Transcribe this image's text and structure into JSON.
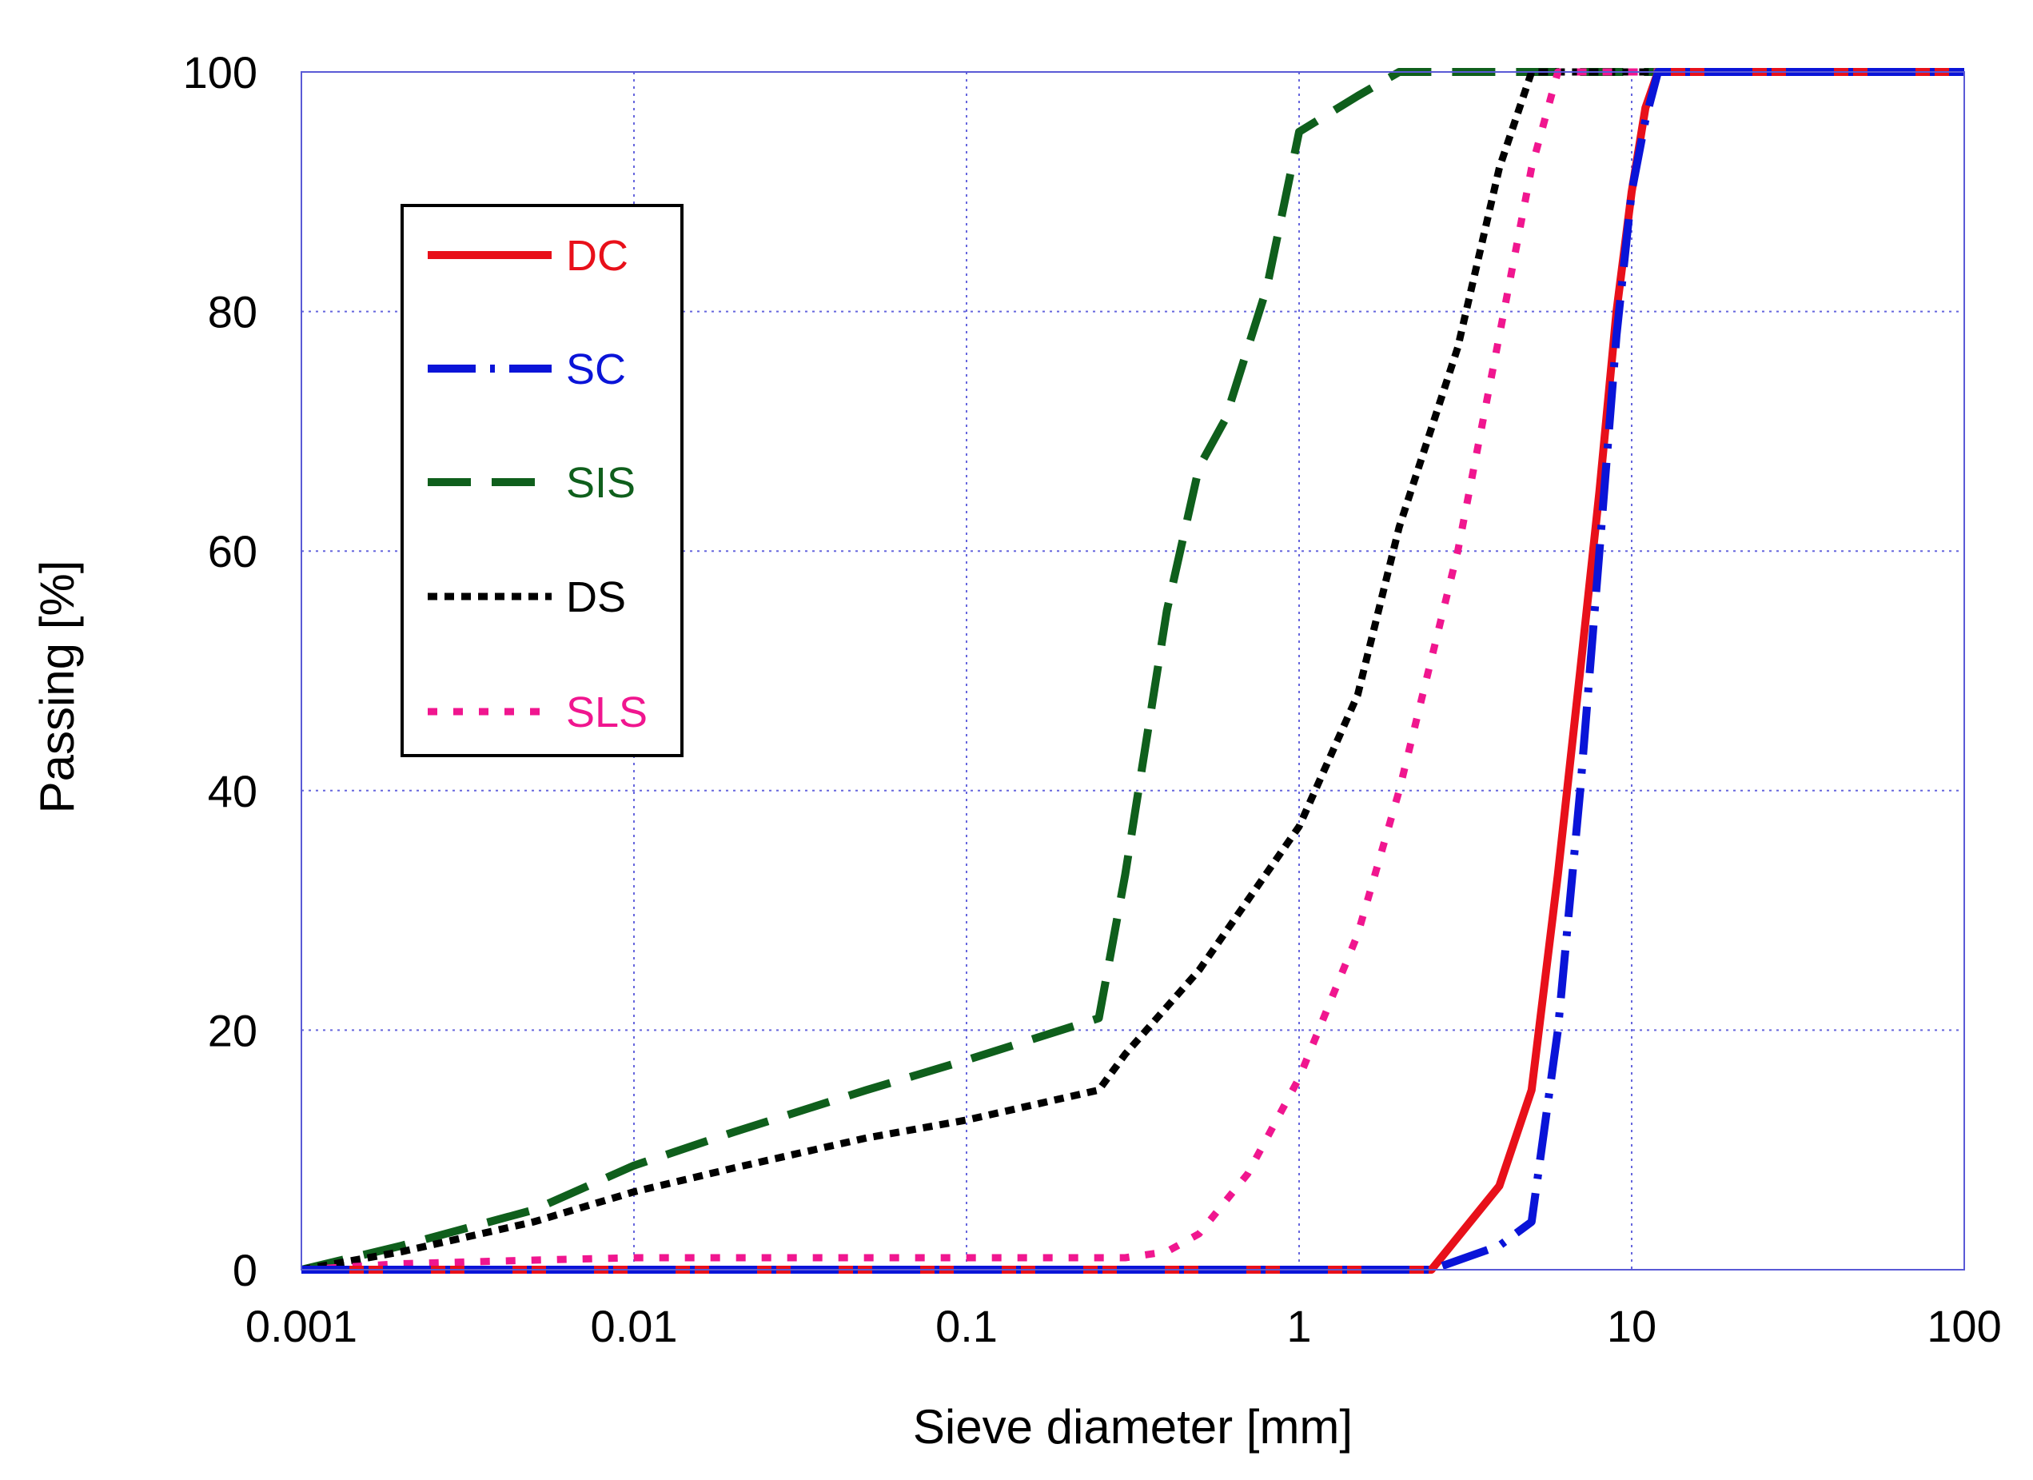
{
  "chart_data": {
    "type": "line",
    "title": "",
    "xlabel": "Sieve diameter [mm]",
    "ylabel": "Passing [%]",
    "xscale": "log",
    "xlim": [
      0.001,
      100
    ],
    "ylim": [
      0,
      100
    ],
    "grid": true,
    "x_ticks": [
      0.001,
      0.01,
      0.1,
      1,
      10,
      100
    ],
    "x_tick_labels": [
      "0.001",
      "0.01",
      "0.1",
      "1",
      "10",
      "100"
    ],
    "y_ticks": [
      0,
      20,
      40,
      60,
      80,
      100
    ],
    "y_tick_labels": [
      "0",
      "20",
      "40",
      "60",
      "80",
      "100"
    ],
    "legend_position": "upper-left",
    "series": [
      {
        "name": "DC",
        "color": "#e8101a",
        "style": "solid",
        "x": [
          0.001,
          0.01,
          0.1,
          1,
          2.5,
          4,
          5,
          6,
          7,
          8,
          9,
          10,
          11,
          12,
          100
        ],
        "y": [
          0,
          0,
          0,
          0,
          0,
          7,
          15,
          33,
          50,
          65,
          80,
          90,
          97,
          100,
          100
        ]
      },
      {
        "name": "SC",
        "color": "#0a14d8",
        "style": "dashdot",
        "x": [
          0.001,
          0.01,
          0.1,
          1,
          2.5,
          4,
          5,
          6,
          7,
          8,
          9,
          10,
          11,
          12,
          100
        ],
        "y": [
          0,
          0,
          0,
          0,
          0,
          2,
          4,
          20,
          40,
          60,
          78,
          90,
          96,
          100,
          100
        ]
      },
      {
        "name": "SIS",
        "color": "#0f5f1c",
        "style": "dash",
        "x": [
          0.001,
          0.002,
          0.005,
          0.01,
          0.02,
          0.05,
          0.1,
          0.25,
          0.3,
          0.4,
          0.5,
          0.6,
          0.8,
          1,
          1.5,
          2,
          3,
          5,
          100
        ],
        "y": [
          0,
          2,
          5,
          8.7,
          11.5,
          15,
          17.5,
          21,
          33,
          55,
          67,
          71,
          82,
          95,
          98,
          100,
          100,
          100,
          100
        ]
      },
      {
        "name": "DS",
        "color": "#000000",
        "style": "dot-dense",
        "x": [
          0.001,
          0.002,
          0.005,
          0.01,
          0.02,
          0.05,
          0.1,
          0.25,
          0.3,
          0.5,
          1,
          1.5,
          2,
          3,
          4,
          5,
          100
        ],
        "y": [
          0,
          1.5,
          4,
          6.5,
          8.5,
          11,
          12.5,
          15,
          18,
          25,
          37,
          48,
          62,
          77,
          92,
          100,
          100
        ]
      },
      {
        "name": "SLS",
        "color": "#f0168f",
        "style": "dot-sparse",
        "x": [
          0.001,
          0.002,
          0.005,
          0.01,
          0.02,
          0.05,
          0.1,
          0.2,
          0.3,
          0.4,
          0.5,
          0.7,
          1,
          1.5,
          2,
          3,
          4,
          5,
          6,
          6.5,
          100
        ],
        "y": [
          0,
          0.5,
          0.8,
          1,
          1,
          1,
          1,
          1,
          1,
          1.5,
          3,
          8,
          16,
          28,
          40,
          60,
          78,
          92,
          100,
          100,
          100
        ]
      }
    ]
  }
}
